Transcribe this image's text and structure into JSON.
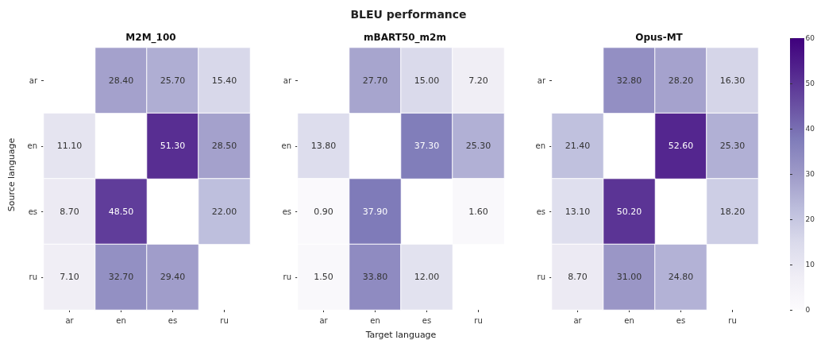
{
  "chart_data": [
    {
      "type": "heatmap",
      "title": "M2M_100",
      "annotations": [
        "BLEU performance"
      ],
      "ylabel": "Source language",
      "categories": [
        "ar",
        "en",
        "es",
        "ru"
      ],
      "y_categories": [
        "ar",
        "en",
        "es",
        "ru"
      ],
      "cells": [
        [
          null,
          28.4,
          25.7,
          15.4
        ],
        [
          11.1,
          null,
          51.3,
          28.5
        ],
        [
          8.7,
          48.5,
          null,
          22.0
        ],
        [
          7.1,
          32.7,
          29.4,
          null
        ]
      ],
      "cell_labels": [
        [
          null,
          "28.40",
          "25.70",
          "15.40"
        ],
        [
          "11.10",
          null,
          "51.30",
          "28.50"
        ],
        [
          "8.70",
          "48.50",
          null,
          "22.00"
        ],
        [
          "7.10",
          "32.70",
          "29.40",
          null
        ]
      ]
    },
    {
      "type": "heatmap",
      "title": "mBART50_m2m",
      "xlabel": "Target language",
      "categories": [
        "ar",
        "en",
        "es",
        "ru"
      ],
      "y_categories": [
        "ar",
        "en",
        "es",
        "ru"
      ],
      "cells": [
        [
          null,
          27.7,
          15.0,
          7.2
        ],
        [
          13.8,
          null,
          37.3,
          25.3
        ],
        [
          0.9,
          37.9,
          null,
          1.6
        ],
        [
          1.5,
          33.8,
          12.0,
          null
        ]
      ],
      "cell_labels": [
        [
          null,
          "27.70",
          "15.00",
          "7.20"
        ],
        [
          "13.80",
          null,
          "37.30",
          "25.30"
        ],
        [
          "0.90",
          "37.90",
          null,
          "1.60"
        ],
        [
          "1.50",
          "33.80",
          "12.00",
          null
        ]
      ]
    },
    {
      "type": "heatmap",
      "title": "Opus-MT",
      "categories": [
        "ar",
        "en",
        "es",
        "ru"
      ],
      "y_categories": [
        "ar",
        "en",
        "es",
        "ru"
      ],
      "clim": [
        0,
        60
      ],
      "cticks": [
        0,
        10,
        20,
        30,
        40,
        50,
        60
      ],
      "cells": [
        [
          null,
          32.8,
          28.2,
          16.3
        ],
        [
          21.4,
          null,
          52.6,
          25.3
        ],
        [
          13.1,
          50.2,
          null,
          18.2
        ],
        [
          8.7,
          31.0,
          24.8,
          null
        ]
      ],
      "cell_labels": [
        [
          null,
          "32.80",
          "28.20",
          "16.30"
        ],
        [
          "21.40",
          null,
          "52.60",
          "25.30"
        ],
        [
          "13.10",
          "50.20",
          null,
          "18.20"
        ],
        [
          "8.70",
          "31.00",
          "24.80",
          null
        ]
      ]
    }
  ]
}
